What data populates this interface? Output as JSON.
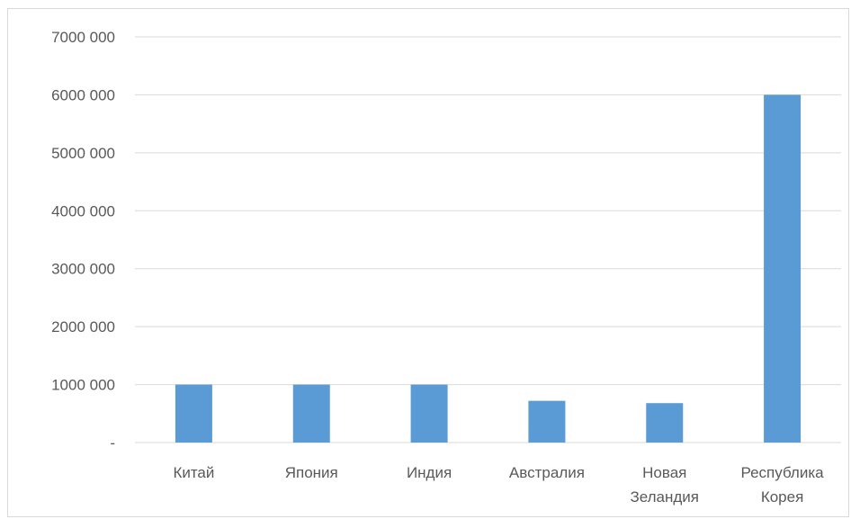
{
  "chart_data": {
    "type": "bar",
    "title": "",
    "xlabel": "",
    "ylabel": "",
    "categories": [
      [
        "Китай"
      ],
      [
        "Япония"
      ],
      [
        "Индия"
      ],
      [
        "Австралия"
      ],
      [
        "Новая",
        "Зеландия"
      ],
      [
        "Республика",
        "Корея"
      ]
    ],
    "values": [
      1000000,
      1000000,
      1000000,
      720000,
      680000,
      6000000
    ],
    "ylim": [
      0,
      7000000
    ],
    "yticks": [
      0,
      1000000,
      2000000,
      3000000,
      4000000,
      5000000,
      6000000,
      7000000
    ],
    "ytick_labels": [
      "-",
      "1000 000",
      "2000 000",
      "3000 000",
      "4000 000",
      "5000 000",
      "6000 000",
      "7000 000"
    ],
    "grid": true,
    "legend": "none",
    "colors": {
      "bar": "#5b9bd5",
      "grid": "#d9d9d9",
      "text": "#595959",
      "border": "#d9d9d9"
    }
  }
}
